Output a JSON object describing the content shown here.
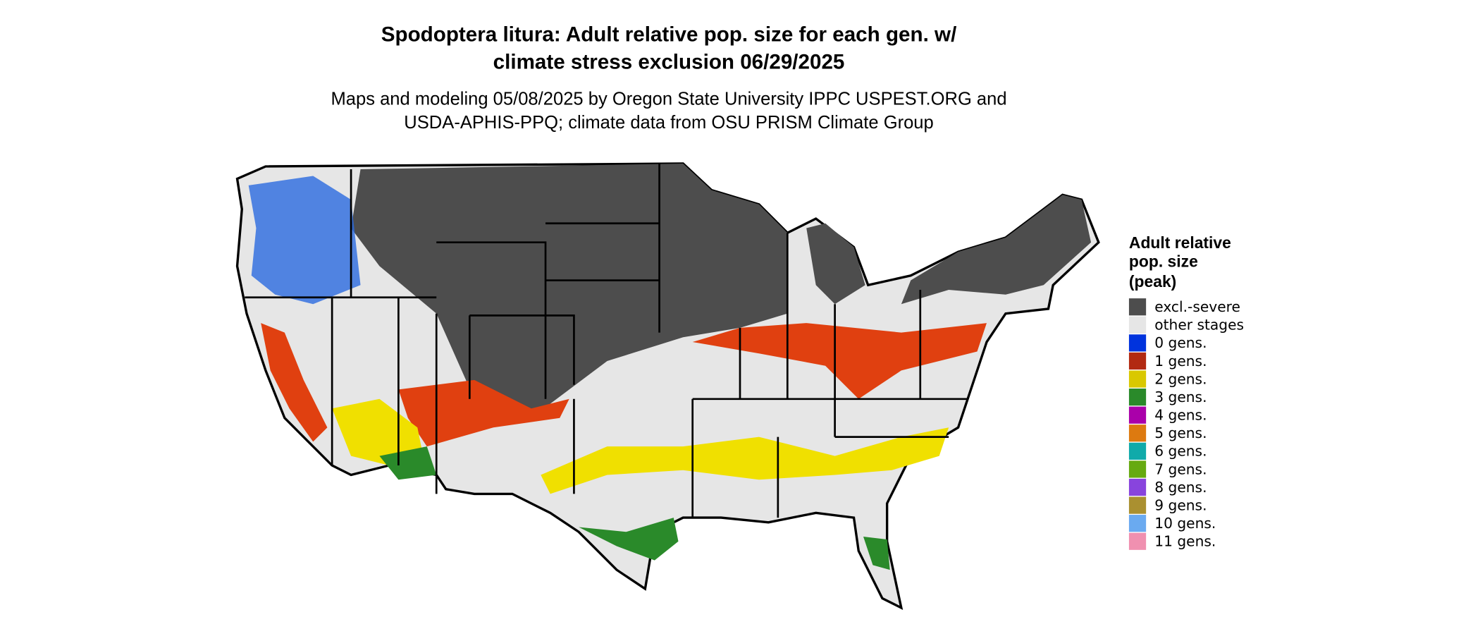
{
  "header": {
    "title": [
      "Spodoptera litura: Adult relative pop. size for each gen. w/",
      "climate stress exclusion 06/29/2025"
    ],
    "subtitle": [
      "Maps and modeling 05/08/2025 by Oregon State University IPPC USPEST.ORG and",
      "USDA-APHIS-PPQ; climate data from OSU PRISM Climate Group"
    ]
  },
  "legend": {
    "title": [
      "Adult relative",
      "pop. size",
      "(peak)"
    ],
    "items": [
      {
        "label": "excl.-severe",
        "color": "#4d4d4d"
      },
      {
        "label": "other stages",
        "color": "#e6e6e6"
      },
      {
        "label": "0 gens.",
        "color": "#0033dd"
      },
      {
        "label": "1 gens.",
        "color": "#b22a12"
      },
      {
        "label": "2 gens.",
        "color": "#d9c800"
      },
      {
        "label": "3 gens.",
        "color": "#2a8a2a"
      },
      {
        "label": "4 gens.",
        "color": "#aa00aa"
      },
      {
        "label": "5 gens.",
        "color": "#dd7a10"
      },
      {
        "label": "6 gens.",
        "color": "#10aaaa"
      },
      {
        "label": "7 gens.",
        "color": "#66aa10"
      },
      {
        "label": "8 gens.",
        "color": "#8844dd"
      },
      {
        "label": "9 gens.",
        "color": "#aa9030"
      },
      {
        "label": "10 gens.",
        "color": "#6aaaf0"
      },
      {
        "label": "11 gens.",
        "color": "#f090b0"
      }
    ]
  }
}
